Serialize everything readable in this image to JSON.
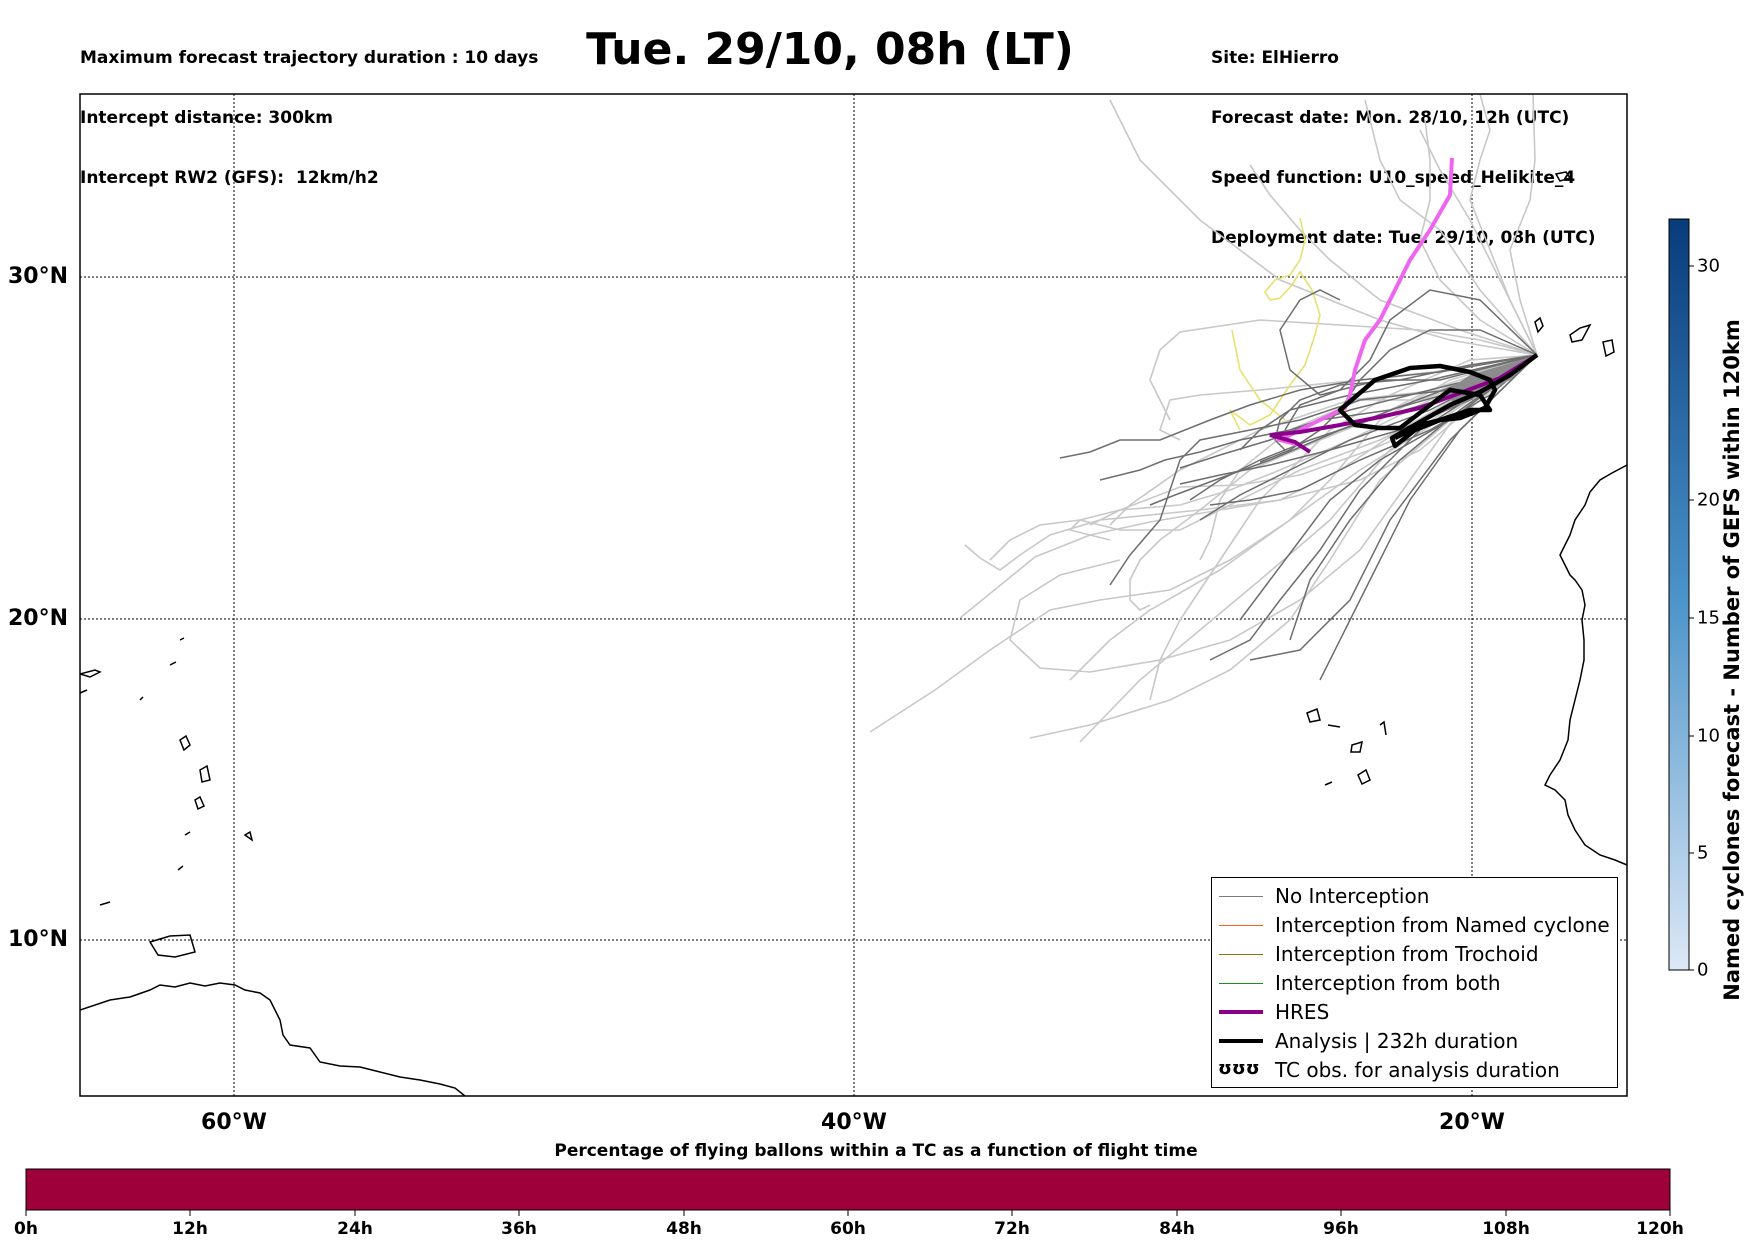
{
  "header": {
    "left_lines": [
      "Maximum forecast trajectory duration : 10 days",
      "Intercept distance: 300km",
      "Intercept RW2 (GFS):  12km/h2"
    ],
    "title": "Tue. 29/10, 08h (LT)",
    "right_lines": [
      "Site: ElHierro",
      "Forecast date: Mon. 28/10, 12h (UTC)",
      "Speed function: U10_speed_Helikite_4",
      "Deployment date: Tue. 29/10, 08h (UTC)"
    ]
  },
  "map": {
    "lat_labels": [
      "30°N",
      "20°N",
      "10°N"
    ],
    "lon_labels": [
      "60°W",
      "40°W",
      "20°W"
    ],
    "grid_lats": [
      30,
      20,
      10
    ],
    "grid_lons": [
      -60,
      -40,
      -20
    ],
    "extent": {
      "lon_min": -65,
      "lon_max": -15,
      "lat_min": 5.4,
      "lat_max": 35.3
    },
    "colors": {
      "no_interception": "#7a7a7a",
      "ensemble_light": "#c8c8c8",
      "named_cyclone": "#ff5a1f",
      "trochoid": "#7a7a1a",
      "both": "#228b22",
      "hres": "#8b008b",
      "hres_track_light": "#ee66ee",
      "analysis": "#000000",
      "yellow_track": "#e8e070"
    }
  },
  "legend": {
    "items": [
      {
        "label": "No Interception",
        "color": "#7a7a7a",
        "width": 1.5
      },
      {
        "label": "Interception from Named cyclone",
        "color": "#ff5a1f",
        "width": 1.5
      },
      {
        "label": "Interception from Trochoid",
        "color": "#7a7a1a",
        "width": 1.5
      },
      {
        "label": "Interception from both",
        "color": "#228b22",
        "width": 1.5
      },
      {
        "label": "HRES",
        "color": "#8b008b",
        "width": 4
      },
      {
        "label": "Analysis | 232h duration",
        "color": "#000000",
        "width": 4
      }
    ],
    "obs_symbol": "ʊʊʊ",
    "obs_label": "TC obs. for analysis duration"
  },
  "vertical_colorbar": {
    "label": "Named cyclones forecast - Number of GEFS within 120km",
    "ticks": [
      "0",
      "5",
      "10",
      "15",
      "20",
      "30"
    ],
    "tick_values": [
      0,
      5,
      10,
      15,
      20,
      30
    ],
    "max": 32,
    "color_low": "#dde8f6",
    "color_high": "#083b7a"
  },
  "bottom_colorbar": {
    "caption": "Percentage of flying ballons within a TC as a function of flight time",
    "ticks": [
      "0h",
      "12h",
      "24h",
      "36h",
      "48h",
      "60h",
      "72h",
      "84h",
      "96h",
      "108h",
      "120h"
    ],
    "fill_color": "#9e003a"
  }
}
